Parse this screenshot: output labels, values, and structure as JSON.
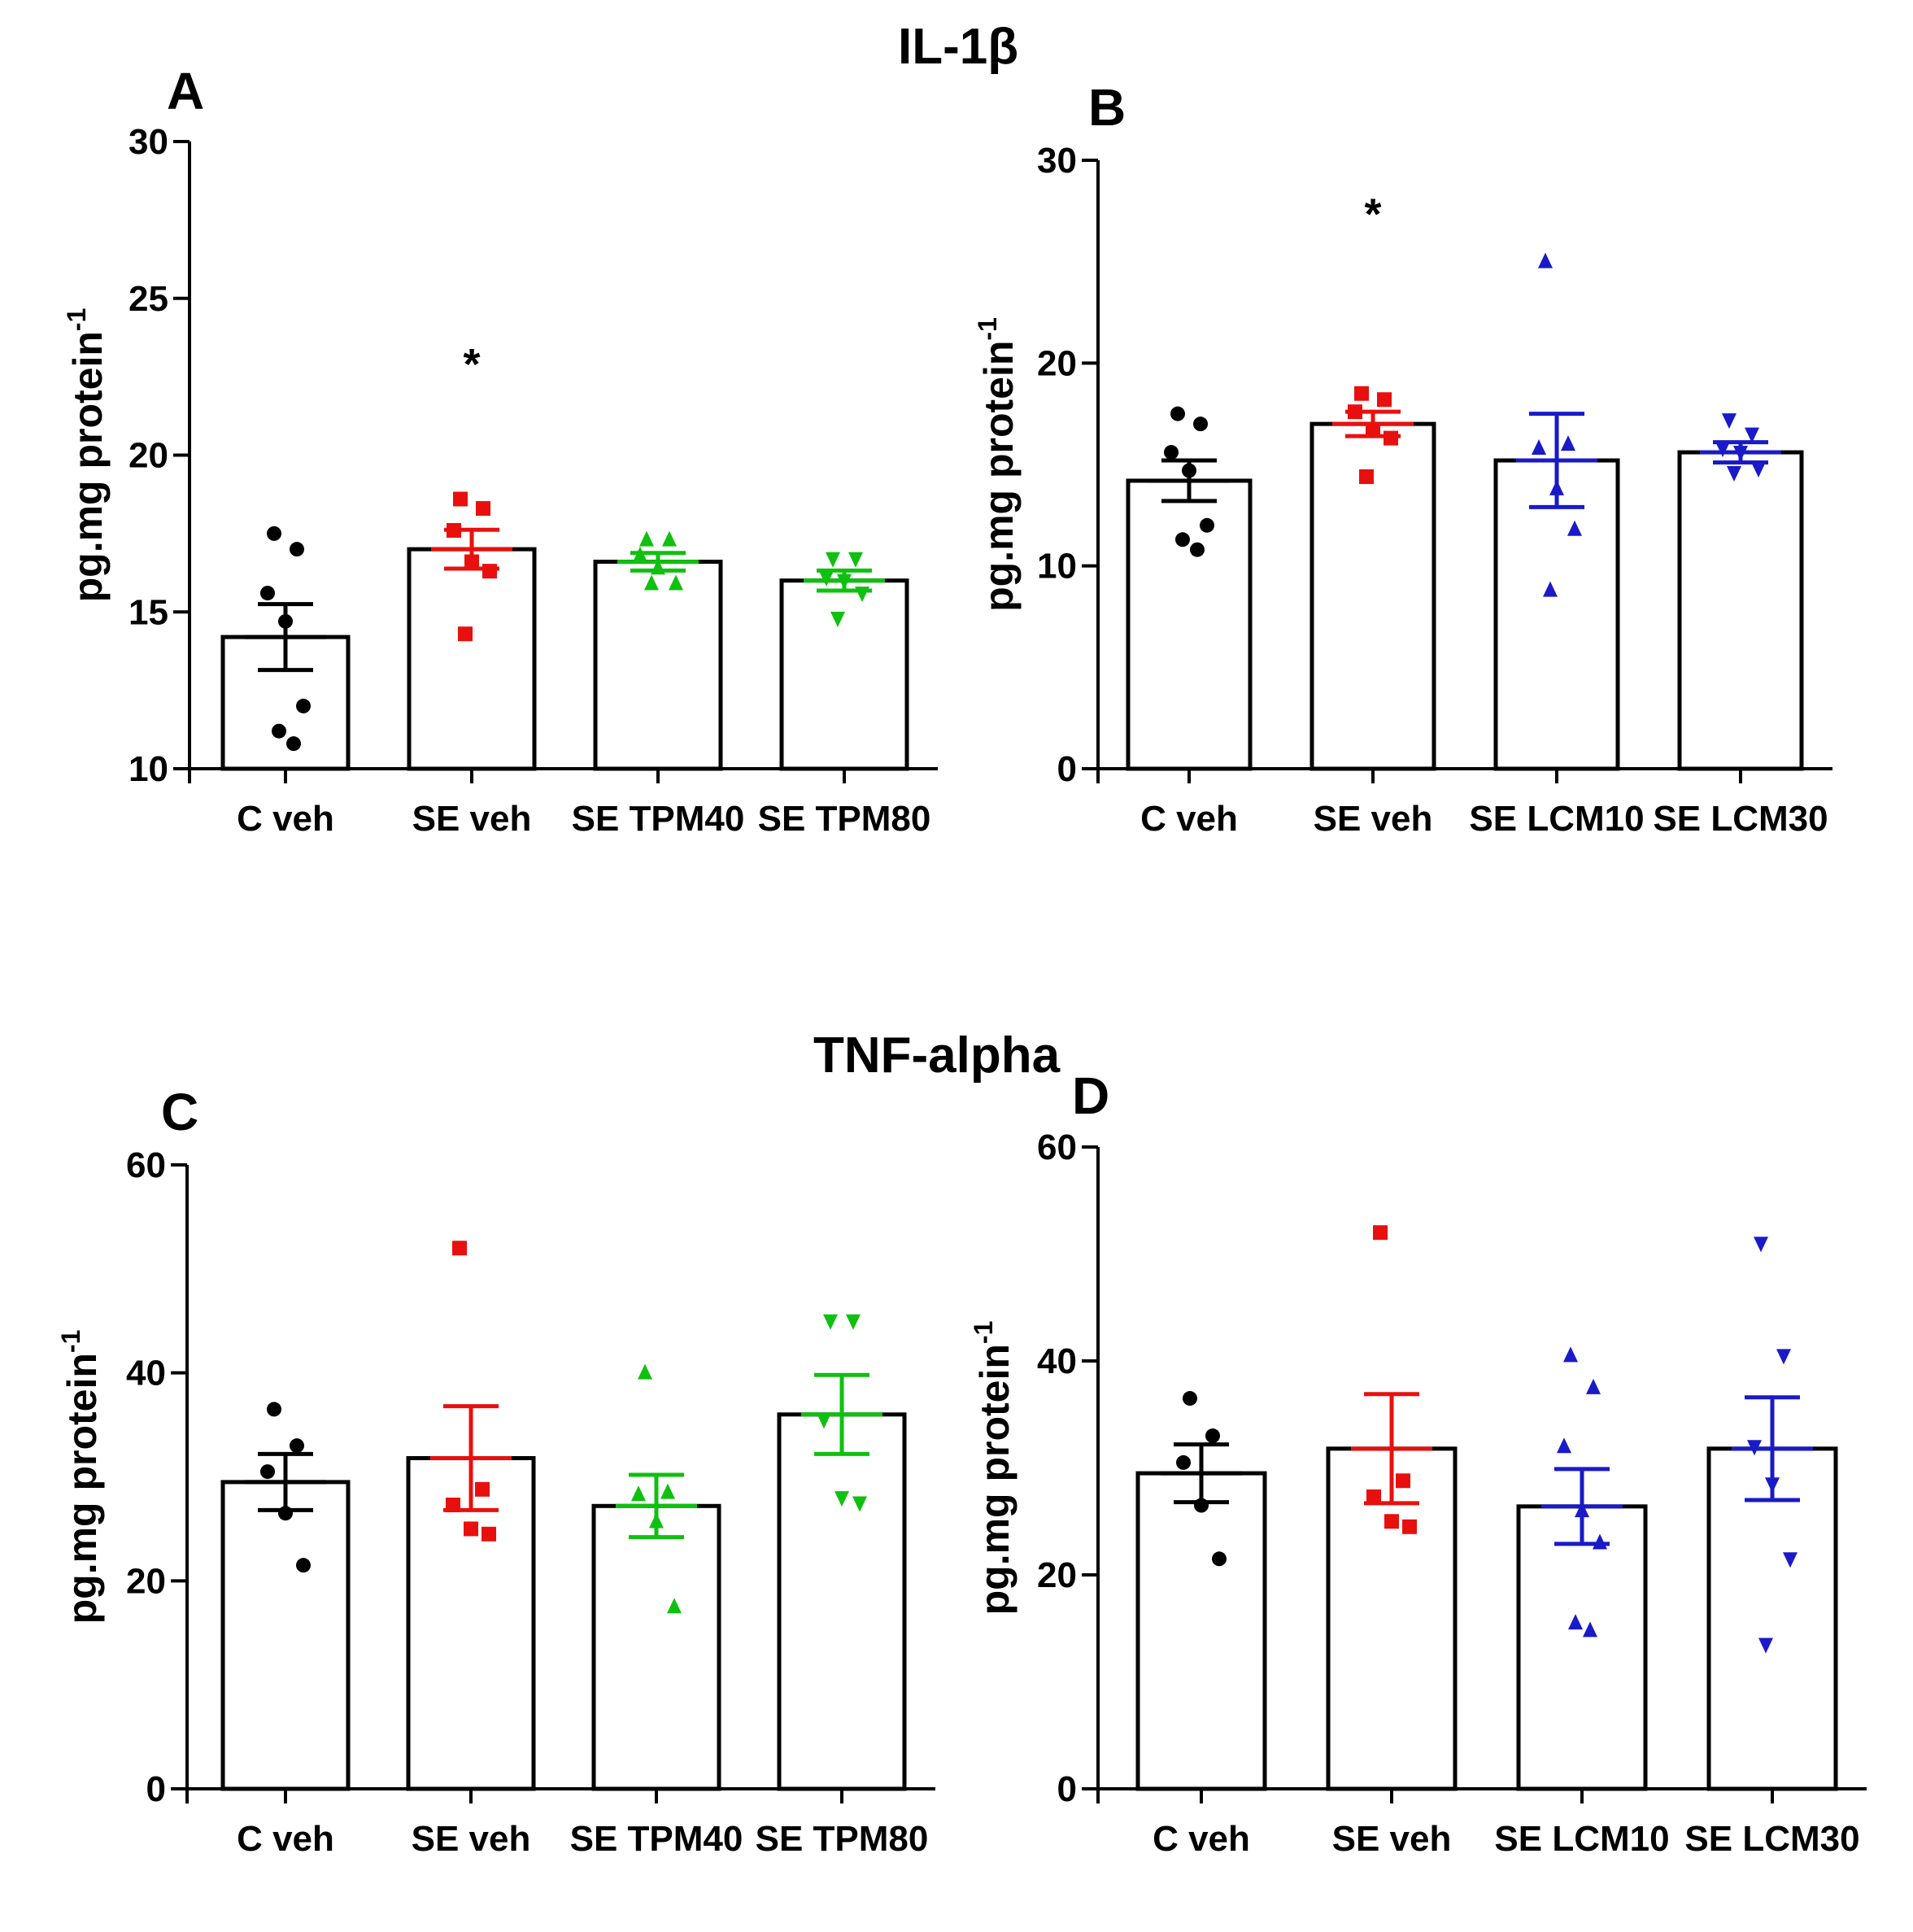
{
  "sections": {
    "top_title": "IL-1β",
    "bottom_title": "TNF-alpha"
  },
  "chart_data": [
    {
      "panel": "A",
      "type": "bar",
      "ylabel": "pg.mg protein",
      "ylabel_sup": "-1",
      "ylim": [
        10,
        30
      ],
      "yticks": [
        10,
        15,
        20,
        25,
        30
      ],
      "categories": [
        "C veh",
        "SE veh",
        "SE TPM40",
        "SE TPM80"
      ],
      "values": [
        14.2,
        17.0,
        16.6,
        16.0
      ],
      "sem": [
        1.05,
        0.62,
        0.28,
        0.32
      ],
      "marker": [
        "circle",
        "square",
        "triangle-up",
        "triangle-down"
      ],
      "colors": [
        "#000000",
        "#e8100f",
        "#10c010",
        "#10c010"
      ],
      "points": [
        [
          17.5,
          17.0,
          15.6,
          14.7,
          12.0,
          11.2,
          10.8
        ],
        [
          18.6,
          18.3,
          17.6,
          16.6,
          16.3,
          14.3
        ],
        [
          17.3,
          17.3,
          16.8,
          16.4,
          15.9,
          15.9
        ],
        [
          16.7,
          16.7,
          16.1,
          16.0,
          15.6,
          14.8
        ]
      ],
      "annotations": [
        {
          "category": "SE veh",
          "text": "*",
          "y": 23
        }
      ]
    },
    {
      "panel": "B",
      "type": "bar",
      "ylabel": "pg.mg protein",
      "ylabel_sup": "-1",
      "ylim": [
        0,
        30
      ],
      "yticks": [
        0,
        10,
        20,
        30
      ],
      "categories": [
        "C veh",
        "SE veh",
        "SE LCM10",
        "SE LCM30"
      ],
      "values": [
        14.2,
        17.0,
        15.2,
        15.6
      ],
      "sem": [
        1.0,
        0.6,
        2.3,
        0.5
      ],
      "marker": [
        "circle",
        "square",
        "triangle-up",
        "triangle-down"
      ],
      "colors": [
        "#000000",
        "#e8100f",
        "#1a1ac8",
        "#1a1ac8"
      ],
      "points": [
        [
          17.5,
          17.0,
          15.6,
          14.7,
          12.0,
          11.3,
          10.8
        ],
        [
          18.5,
          18.2,
          17.6,
          16.7,
          16.3,
          14.4
        ],
        [
          25.0,
          16.0,
          15.8,
          13.8,
          11.8,
          8.8
        ],
        [
          17.2,
          16.5,
          15.8,
          15.6,
          14.8,
          14.6
        ]
      ],
      "annotations": [
        {
          "category": "SE veh",
          "text": "*",
          "y": 27.5
        }
      ]
    },
    {
      "panel": "C",
      "type": "bar",
      "ylabel": "pg.mg protein",
      "ylabel_sup": "-1",
      "ylim": [
        0,
        60
      ],
      "yticks": [
        0,
        20,
        40,
        60
      ],
      "categories": [
        "C veh",
        "SE veh",
        "SE TPM40",
        "SE TPM80"
      ],
      "values": [
        29.5,
        31.8,
        27.2,
        36.0
      ],
      "sem": [
        2.7,
        5.0,
        3.0,
        3.8
      ],
      "marker": [
        "circle",
        "square",
        "triangle-up",
        "triangle-down"
      ],
      "colors": [
        "#000000",
        "#e8100f",
        "#10c010",
        "#10c010"
      ],
      "points": [
        [
          36.5,
          33.0,
          30.5,
          26.5,
          21.5
        ],
        [
          52.0,
          28.8,
          27.3,
          25.0,
          24.5
        ],
        [
          40.0,
          28.5,
          28.3,
          25.7,
          17.5
        ],
        [
          45.0,
          45.0,
          35.5,
          28.0,
          27.5
        ]
      ],
      "annotations": []
    },
    {
      "panel": "D",
      "type": "bar",
      "ylabel": "pg.mg protein",
      "ylabel_sup": "-1",
      "ylim": [
        0,
        60
      ],
      "yticks": [
        0,
        20,
        40,
        60
      ],
      "categories": [
        "C veh",
        "SE veh",
        "SE LCM10",
        "SE LCM30"
      ],
      "values": [
        29.5,
        31.8,
        26.4,
        31.8
      ],
      "sem": [
        2.7,
        5.1,
        3.5,
        4.8
      ],
      "marker": [
        "circle",
        "square",
        "triangle-up",
        "triangle-down"
      ],
      "colors": [
        "#000000",
        "#e8100f",
        "#1a1ac8",
        "#1a1ac8"
      ],
      "points": [
        [
          36.5,
          33.0,
          30.5,
          26.5,
          21.5
        ],
        [
          52.0,
          28.8,
          27.3,
          25.0,
          24.5
        ],
        [
          40.5,
          37.5,
          32.0,
          26.0,
          23.0,
          15.5,
          14.8
        ],
        [
          51.0,
          40.5,
          32.0,
          28.5,
          21.5,
          13.5
        ]
      ],
      "annotations": []
    }
  ]
}
